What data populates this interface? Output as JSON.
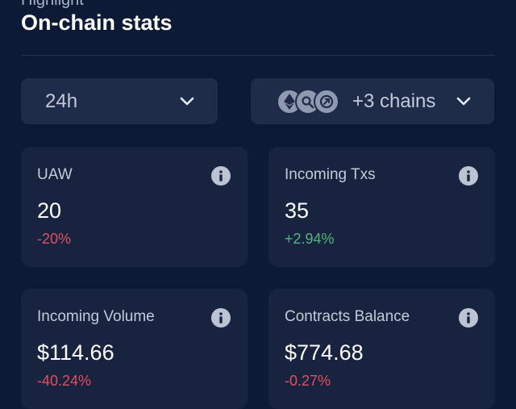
{
  "header": {
    "eyebrow": "Highlight",
    "title": "On-chain stats"
  },
  "filters": {
    "timeframe": {
      "value": "24h"
    },
    "chains": {
      "label": "+3 chains",
      "icons": [
        "ethereum-icon",
        "chain-link-icon",
        "chain-swap-icon"
      ]
    }
  },
  "stats": [
    {
      "label": "UAW",
      "value": "20",
      "change": "-20%",
      "trend": "down"
    },
    {
      "label": "Incoming Txs",
      "value": "35",
      "change": "+2.94%",
      "trend": "up"
    },
    {
      "label": "Incoming Volume",
      "value": "$114.66",
      "change": "-40.24%",
      "trend": "down"
    },
    {
      "label": "Contracts Balance",
      "value": "$774.68",
      "change": "-0.27%",
      "trend": "down"
    }
  ],
  "colors": {
    "background": "#0d1a36",
    "card": "#18243f",
    "negative": "#e0505e",
    "positive": "#4fb77a"
  }
}
